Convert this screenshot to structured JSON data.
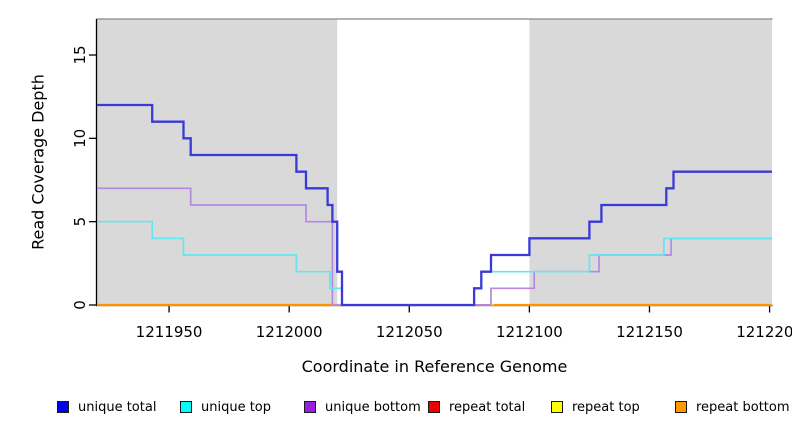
{
  "figure": {
    "background_color": "#ffffff",
    "shaded_band_color": "#d9d9d9",
    "top_border_color": "#9a9a9a",
    "axis_color": "#000000"
  },
  "chart_data": {
    "type": "line",
    "subtype": "step",
    "title": "",
    "xlabel": "Coordinate in Reference Genome",
    "ylabel": "Read Coverage Depth",
    "xlim": [
      1211920,
      1212201
    ],
    "ylim": [
      0,
      17.2
    ],
    "grid": false,
    "legend_position": "bottom",
    "x_ticks": [
      {
        "value": 1211950,
        "label": "1211950"
      },
      {
        "value": 1212000,
        "label": "1212000"
      },
      {
        "value": 1212050,
        "label": "1212050"
      },
      {
        "value": 1212100,
        "label": "1212100"
      },
      {
        "value": 1212150,
        "label": "1212150"
      },
      {
        "value": 1212200,
        "label": "1212200"
      }
    ],
    "y_ticks": [
      {
        "value": 0,
        "label": "0"
      },
      {
        "value": 5,
        "label": "5"
      },
      {
        "value": 10,
        "label": "10"
      },
      {
        "value": 15,
        "label": "15"
      }
    ],
    "shaded_regions": [
      {
        "x0": 1211920,
        "x1": 1212020,
        "color": "#d9d9d9"
      },
      {
        "x0": 1212100,
        "x1": 1212201,
        "color": "#d9d9d9"
      }
    ],
    "series": [
      {
        "name": "repeat top",
        "line_color": "#ffee00",
        "line_width": 1.6,
        "segments": [
          [
            [
              1211920,
              0
            ],
            [
              1212201,
              0
            ]
          ]
        ]
      },
      {
        "name": "repeat bottom",
        "line_color": "#ff9100",
        "line_width": 2.2,
        "segments": [
          [
            [
              1211920,
              0
            ],
            [
              1212021,
              0
            ]
          ],
          [
            [
              1212085,
              0
            ],
            [
              1212201,
              0
            ]
          ]
        ]
      },
      {
        "name": "repeat total",
        "line_color": "#e65058",
        "line_width": 2.0,
        "segments": [
          [
            [
              1212022,
              0
            ],
            [
              1212084,
              0
            ]
          ]
        ]
      },
      {
        "name": "unique bottom",
        "line_color": "#b787e2",
        "line_width": 1.7,
        "segments": [
          [
            [
              1211920,
              7
            ],
            [
              1211959,
              6
            ],
            [
              1212007,
              5
            ],
            [
              1212018,
              0
            ],
            [
              1212084,
              1
            ],
            [
              1212102,
              2
            ],
            [
              1212129,
              3
            ],
            [
              1212159,
              4
            ],
            [
              1212201,
              4
            ]
          ]
        ]
      },
      {
        "name": "unique top",
        "line_color": "#63e6ef",
        "line_width": 1.7,
        "segments": [
          [
            [
              1211920,
              5
            ],
            [
              1211943,
              4
            ],
            [
              1211956,
              3
            ],
            [
              1212003,
              2
            ],
            [
              1212017,
              1
            ],
            [
              1212022,
              0
            ],
            [
              1212077,
              1
            ],
            [
              1212080,
              2
            ],
            [
              1212125,
              3
            ],
            [
              1212156,
              4
            ],
            [
              1212201,
              4
            ]
          ]
        ]
      },
      {
        "name": "unique total",
        "line_color": "#3a3ad8",
        "line_width": 2.3,
        "segments": [
          [
            [
              1211920,
              12
            ],
            [
              1211943,
              11
            ],
            [
              1211956,
              10
            ],
            [
              1211959,
              9
            ],
            [
              1212003,
              8
            ],
            [
              1212007,
              7
            ],
            [
              1212016,
              6
            ],
            [
              1212018,
              5
            ],
            [
              1212020,
              2
            ],
            [
              1212022,
              0
            ],
            [
              1212077,
              1
            ],
            [
              1212080,
              2
            ],
            [
              1212084,
              3
            ],
            [
              1212100,
              4
            ],
            [
              1212125,
              5
            ],
            [
              1212130,
              6
            ],
            [
              1212157,
              7
            ],
            [
              1212160,
              8
            ],
            [
              1212201,
              8
            ]
          ]
        ]
      }
    ]
  },
  "legend": {
    "items": [
      {
        "label": "unique total",
        "swatch_color": "#0000ee"
      },
      {
        "label": "unique top",
        "swatch_color": "#00ffff"
      },
      {
        "label": "unique bottom",
        "swatch_color": "#9a20e0"
      },
      {
        "label": "repeat total",
        "swatch_color": "#ee0000"
      },
      {
        "label": "repeat top",
        "swatch_color": "#ffff00"
      },
      {
        "label": "repeat bottom",
        "swatch_color": "#ff9700"
      }
    ]
  }
}
